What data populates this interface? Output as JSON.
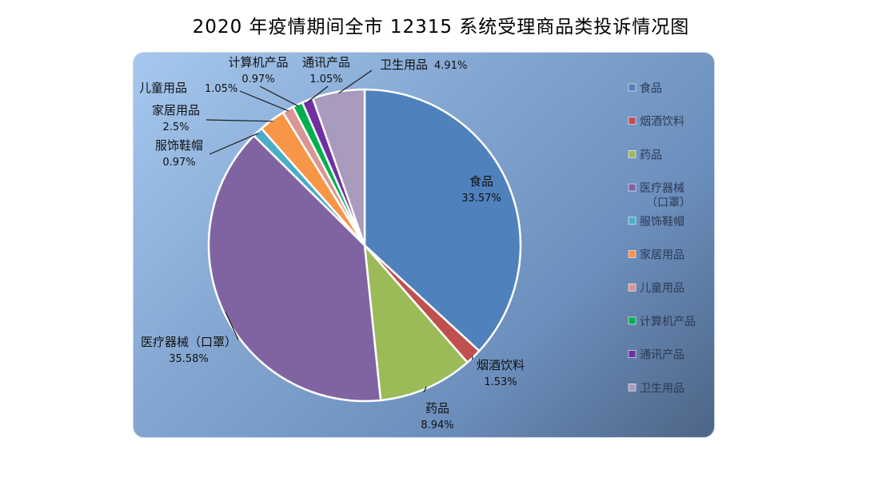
{
  "chart_data": {
    "type": "pie",
    "title": "2020 年疫情期间全市 12315 系统受理商品类投诉情况图",
    "slices": [
      {
        "name": "食品",
        "value": 33.57,
        "label": "33.57%",
        "color": "#4f81bd"
      },
      {
        "name": "烟酒饮料",
        "value": 1.53,
        "label": "1.53%",
        "color": "#c0504d"
      },
      {
        "name": "药品",
        "value": 8.94,
        "label": "8.94%",
        "color": "#9bbb59"
      },
      {
        "name": "医疗器械（口罩）",
        "value": 35.58,
        "label": "35.58%",
        "color": "#8064a2"
      },
      {
        "name": "服饰鞋帽",
        "value": 0.97,
        "label": "0.97%",
        "color": "#4bacc6"
      },
      {
        "name": "家居用品",
        "value": 2.5,
        "label": "2.5%",
        "color": "#f79646"
      },
      {
        "name": "儿童用品",
        "value": 1.05,
        "label": "1.05%",
        "color": "#d99594"
      },
      {
        "name": "计算机产品",
        "value": 0.97,
        "label": "0.97%",
        "color": "#00b050"
      },
      {
        "name": "通讯产品",
        "value": 1.05,
        "label": "1.05%",
        "color": "#7030a0"
      },
      {
        "name": "卫生用品",
        "value": 4.91,
        "label": "4.91%",
        "color": "#a99bbd"
      }
    ],
    "legend": {
      "placement": "right",
      "entries": [
        "食品",
        "烟酒饮料",
        "药品",
        "医疗器械\n（口罩）",
        "服饰鞋帽",
        "家居用品",
        "儿童用品",
        "计算机产品",
        "通讯产品",
        "卫生用品"
      ]
    }
  }
}
